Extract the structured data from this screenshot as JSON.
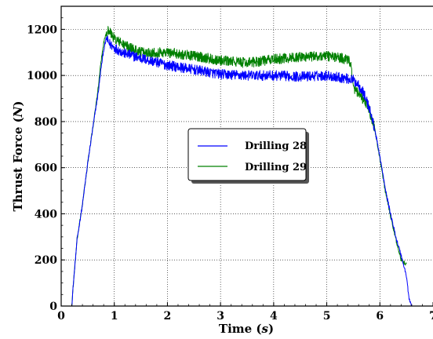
{
  "chart_data": {
    "type": "line",
    "xlabel_text": "Time",
    "xlabel_unit": "s",
    "ylabel_text": "Thrust Force",
    "ylabel_unit": "N",
    "xlim": [
      0,
      7
    ],
    "ylim": [
      0,
      1300
    ],
    "xticks": [
      "0",
      "1",
      "2",
      "3",
      "4",
      "5",
      "6",
      "7"
    ],
    "yticks": [
      "0",
      "200",
      "400",
      "600",
      "800",
      "1000",
      "1200"
    ],
    "grid": true,
    "legend_position": "center",
    "series": [
      {
        "name": "Drilling 28",
        "color": "#0000ff",
        "x": [
          0,
          0.2,
          0.22,
          0.3,
          0.4,
          0.5,
          0.6,
          0.7,
          0.75,
          0.8,
          0.85,
          0.9,
          1.0,
          1.2,
          1.5,
          2.0,
          2.5,
          3.0,
          3.5,
          4.0,
          4.5,
          5.0,
          5.3,
          5.5,
          5.6,
          5.7,
          5.8,
          5.9,
          6.0,
          6.1,
          6.2,
          6.3,
          6.4,
          6.5,
          6.55,
          6.6,
          7.0
        ],
        "y": [
          0,
          0,
          70,
          290,
          440,
          620,
          780,
          930,
          1030,
          1110,
          1160,
          1140,
          1120,
          1095,
          1075,
          1045,
          1025,
          1005,
          1000,
          1000,
          995,
          1000,
          990,
          980,
          960,
          920,
          860,
          770,
          650,
          510,
          400,
          300,
          220,
          130,
          30,
          0,
          0
        ],
        "noise": 22
      },
      {
        "name": "Drilling 29",
        "color": "#008000",
        "x": [
          0,
          0.2,
          0.22,
          0.3,
          0.4,
          0.5,
          0.6,
          0.7,
          0.75,
          0.8,
          0.85,
          0.9,
          1.0,
          1.2,
          1.5,
          2.0,
          2.5,
          3.0,
          3.5,
          4.0,
          4.5,
          5.0,
          5.3,
          5.45,
          5.5,
          5.6,
          5.7,
          5.8,
          5.9,
          6.0,
          6.1,
          6.2,
          6.3,
          6.4,
          6.5
        ],
        "y": [
          0,
          0,
          70,
          290,
          440,
          620,
          780,
          950,
          1060,
          1140,
          1190,
          1195,
          1160,
          1130,
          1100,
          1100,
          1085,
          1065,
          1055,
          1070,
          1080,
          1085,
          1075,
          1060,
          940,
          920,
          890,
          850,
          770,
          640,
          500,
          390,
          290,
          200,
          180
        ],
        "noise": 22
      }
    ]
  }
}
